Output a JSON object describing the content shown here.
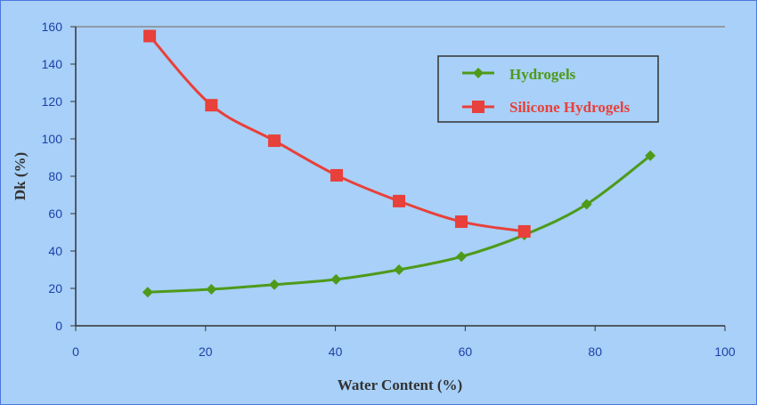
{
  "chart_data": {
    "type": "line",
    "title": "",
    "xlabel": "Water Content (%)",
    "ylabel": "Dk (%)",
    "xlim": [
      0,
      100
    ],
    "ylim": [
      0,
      160
    ],
    "xticks": [
      "0",
      "20",
      "40",
      "60",
      "80",
      "100"
    ],
    "yticks": [
      "0",
      "20",
      "40",
      "60",
      "80",
      "100",
      "120",
      "140",
      "160"
    ],
    "legend_position": "top-right",
    "series": [
      {
        "name": "Hydrogels",
        "color": "#4e9a1a",
        "marker": "diamond",
        "x": [
          11.1,
          20.9,
          30.6,
          40.1,
          49.8,
          59.4,
          69.1,
          78.7,
          88.5
        ],
        "y": [
          18,
          19.5,
          22,
          24.8,
          30,
          37,
          48.6,
          65,
          91
        ]
      },
      {
        "name": "Silicone Hydrogels",
        "color": "#e8403a",
        "marker": "square",
        "x": [
          11.4,
          20.9,
          30.6,
          40.2,
          49.8,
          59.4,
          69.1
        ],
        "y": [
          155,
          118,
          99,
          80.5,
          66.7,
          55.7,
          50.5
        ]
      }
    ]
  }
}
